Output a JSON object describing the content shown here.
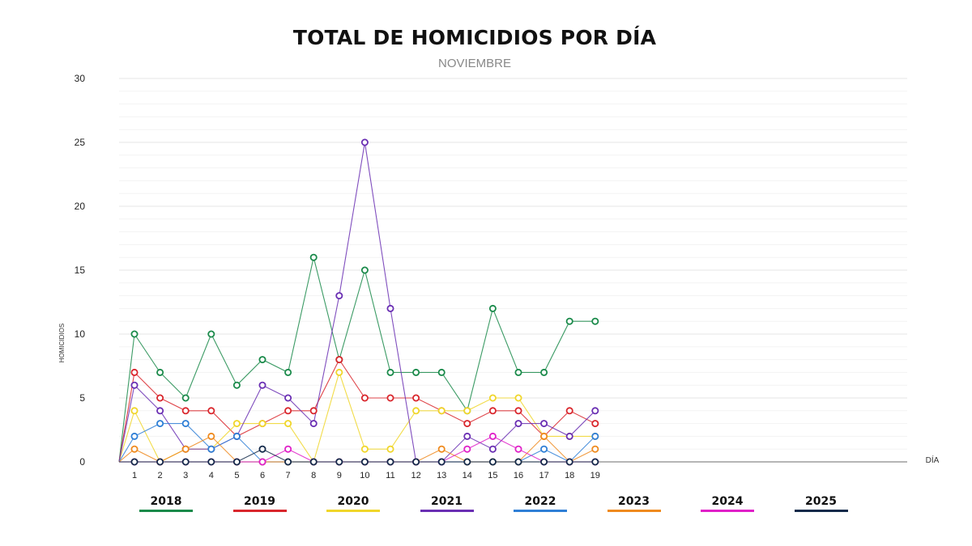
{
  "chart_data": {
    "type": "line",
    "title": "TOTAL DE HOMICIDIOS POR DÍA",
    "subtitle": "NOVIEMBRE",
    "xlabel": "DÍA",
    "ylabel": "HOMICIDIOS",
    "ylim": [
      0,
      30
    ],
    "yticks": [
      0,
      5,
      10,
      15,
      20,
      25,
      30
    ],
    "x": [
      1,
      2,
      3,
      4,
      5,
      6,
      7,
      8,
      9,
      10,
      11,
      12,
      13,
      14,
      15,
      16,
      17,
      18,
      19
    ],
    "grid": true,
    "legend_position": "bottom",
    "series": [
      {
        "name": "2018",
        "color": "#1a8a4a",
        "values": [
          10,
          7,
          5,
          10,
          6,
          8,
          7,
          16,
          8,
          15,
          7,
          7,
          7,
          4,
          12,
          7,
          7,
          11,
          11
        ]
      },
      {
        "name": "2019",
        "color": "#d9262c",
        "values": [
          7,
          5,
          4,
          4,
          2,
          3,
          4,
          4,
          8,
          5,
          5,
          5,
          4,
          3,
          4,
          4,
          2,
          4,
          3
        ]
      },
      {
        "name": "2020",
        "color": "#f0d62a",
        "values": [
          4,
          0,
          1,
          1,
          3,
          3,
          3,
          0,
          7,
          1,
          1,
          4,
          4,
          4,
          5,
          5,
          2,
          2,
          2
        ]
      },
      {
        "name": "2021",
        "color": "#6a2fb3",
        "values": [
          6,
          4,
          1,
          1,
          2,
          6,
          5,
          3,
          13,
          25,
          12,
          0,
          0,
          2,
          1,
          3,
          3,
          2,
          4
        ]
      },
      {
        "name": "2022",
        "color": "#2f7fd6",
        "values": [
          2,
          3,
          3,
          1,
          2,
          0,
          0,
          0,
          0,
          0,
          0,
          0,
          0,
          0,
          0,
          0,
          1,
          0,
          2
        ]
      },
      {
        "name": "2023",
        "color": "#ef8a1e",
        "values": [
          1,
          0,
          1,
          2,
          0,
          0,
          0,
          0,
          0,
          0,
          0,
          0,
          1,
          0,
          0,
          0,
          2,
          0,
          1
        ]
      },
      {
        "name": "2024",
        "color": "#e020c8",
        "values": [
          0,
          0,
          0,
          0,
          0,
          0,
          1,
          0,
          0,
          0,
          0,
          0,
          0,
          1,
          2,
          1,
          0,
          0,
          0
        ]
      },
      {
        "name": "2025",
        "color": "#132a4a",
        "values": [
          0,
          0,
          0,
          0,
          0,
          1,
          0,
          0,
          0,
          0,
          0,
          0,
          0,
          0,
          0,
          0,
          0,
          0,
          0
        ]
      }
    ]
  }
}
